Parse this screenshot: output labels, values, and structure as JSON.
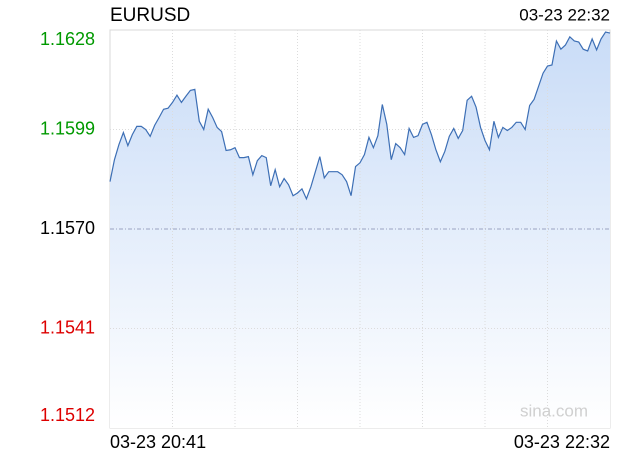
{
  "chart_data": {
    "type": "line",
    "title": "EURUSD",
    "timestamp": "03-23 22:32",
    "watermark": "sina.com",
    "categories": [
      "03-23 20:41",
      null,
      null,
      null,
      null,
      null,
      null,
      null,
      null,
      null,
      null,
      null,
      null,
      null,
      null,
      null,
      null,
      null,
      null,
      null,
      null,
      null,
      null,
      null,
      null,
      null,
      null,
      null,
      null,
      null,
      null,
      null,
      null,
      null,
      null,
      null,
      null,
      null,
      null,
      null,
      null,
      null,
      null,
      null,
      null,
      null,
      null,
      null,
      null,
      null,
      null,
      null,
      null,
      null,
      null,
      null,
      null,
      null,
      null,
      null,
      null,
      null,
      null,
      null,
      null,
      null,
      null,
      null,
      null,
      null,
      null,
      null,
      null,
      null,
      null,
      null,
      null,
      null,
      null,
      null,
      null,
      null,
      null,
      null,
      null,
      null,
      null,
      null,
      null,
      null,
      null,
      null,
      null,
      null,
      null,
      null,
      null,
      null,
      null,
      null,
      null,
      null,
      null,
      null,
      null,
      null,
      null,
      null,
      null,
      null,
      null,
      null,
      "03-23 22:32"
    ],
    "series": [
      {
        "name": "EURUSD",
        "color": "#3d6fb5",
        "fill": "#c9dcf7",
        "values": [
          1.15838,
          1.15902,
          1.15946,
          1.15981,
          1.15943,
          1.15975,
          1.15999,
          1.15999,
          1.1599,
          1.1597,
          1.16002,
          1.16025,
          1.16049,
          1.16052,
          1.16069,
          1.1609,
          1.16069,
          1.16087,
          1.16104,
          1.16107,
          1.16014,
          1.1599,
          1.16049,
          1.16025,
          1.15996,
          1.15984,
          1.15929,
          1.15931,
          1.15937,
          1.15908,
          1.15908,
          1.15911,
          1.15858,
          1.15899,
          1.15914,
          1.15908,
          1.15826,
          1.15873,
          1.15823,
          1.15847,
          1.15829,
          1.15797,
          1.15805,
          1.15817,
          1.15788,
          1.15823,
          1.15867,
          1.15911,
          1.15849,
          1.15867,
          1.15867,
          1.15867,
          1.15858,
          1.15838,
          1.15797,
          1.15882,
          1.15893,
          1.15917,
          1.15967,
          1.15937,
          1.15972,
          1.16063,
          1.16005,
          1.15902,
          1.15949,
          1.15937,
          1.15917,
          1.15993,
          1.15967,
          1.15972,
          1.16005,
          1.16011,
          1.15975,
          1.15931,
          1.15896,
          1.15926,
          1.1597,
          1.15993,
          1.15964,
          1.15987,
          1.16075,
          1.16087,
          1.16055,
          1.15996,
          1.15958,
          1.15931,
          1.16014,
          1.15967,
          1.15996,
          1.15987,
          1.15996,
          1.16011,
          1.16011,
          1.1599,
          1.1606,
          1.16078,
          1.16116,
          1.16154,
          1.16175,
          1.16178,
          1.16248,
          1.16224,
          1.16236,
          1.1626,
          1.16248,
          1.16245,
          1.16224,
          1.16219,
          1.16254,
          1.16222,
          1.16254,
          1.16274,
          1.16271
        ]
      }
    ],
    "ylim": [
      1.1512,
      1.1628
    ],
    "yticks": [
      1.1628,
      1.1599,
      1.157,
      {
        "value": 1.157,
        "label": "1.1570"
      },
      1.1541,
      1.1512
    ],
    "up_color": "#009900",
    "down_color": "#dd0000",
    "neutral_color": "#000000",
    "grid": true
  }
}
